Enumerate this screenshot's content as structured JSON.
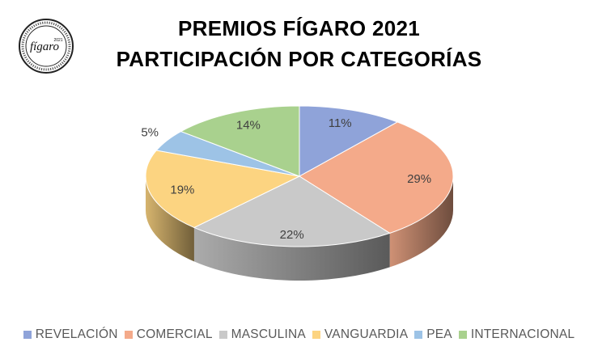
{
  "title_line1": "PREMIOS FÍGARO 2021",
  "title_line2": "PARTICIPACIÓN POR CATEGORÍAS",
  "logo": {
    "text_main": "fígaro",
    "text_small": "2021",
    "ring_text": "ASOCIACIÓN PELUQUERÍA · COMUNIDAD · ESPAÑA ·"
  },
  "chart_data": {
    "type": "pie",
    "title": "PREMIOS FÍGARO 2021 PARTICIPACIÓN POR CATEGORÍAS",
    "categories": [
      "REVELACIÓN",
      "COMERCIAL",
      "MASCULINA",
      "VANGUARDIA",
      "PEA",
      "INTERNACIONAL"
    ],
    "values": [
      11,
      29,
      22,
      19,
      5,
      14
    ],
    "labels": [
      "11%",
      "29%",
      "22%",
      "19%",
      "5%",
      "14%"
    ],
    "colors": [
      "#8FA3D9",
      "#F4AA8A",
      "#C9C9C9",
      "#FCD481",
      "#9DC3E6",
      "#A9D18E"
    ],
    "style": "3d",
    "legend_position": "bottom"
  }
}
